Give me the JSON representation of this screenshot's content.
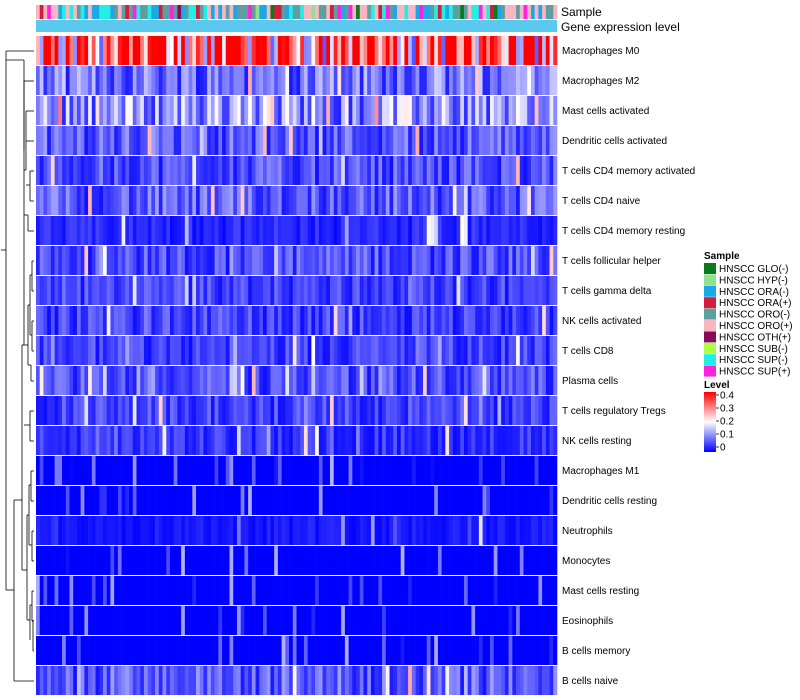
{
  "chart_data": {
    "type": "heatmap",
    "annotation_tracks": [
      "Sample",
      "Gene expression level"
    ],
    "rows": [
      "Macrophages M0",
      "Macrophages M2",
      "Mast cells activated",
      "Dendritic cells activated",
      "T cells CD4 memory activated",
      "T cells CD4 naive",
      "T cells CD4 memory resting",
      "T cells follicular helper",
      "T cells gamma delta",
      "NK cells activated",
      "T cells CD8",
      "Plasma cells",
      "T cells regulatory  Tregs",
      "NK cells resting",
      "Macrophages M1",
      "Dendritic cells resting",
      "Neutrophils",
      "Monocytes",
      "Mast cells resting",
      "Eosinophils",
      "B cells memory",
      "B cells naive"
    ],
    "row_mean_level": [
      0.32,
      0.09,
      0.12,
      0.07,
      0.06,
      0.07,
      0.03,
      0.06,
      0.05,
      0.05,
      0.05,
      0.06,
      0.05,
      0.04,
      0.01,
      0.01,
      0.02,
      0.01,
      0.01,
      0.01,
      0.01,
      0.07
    ],
    "n_samples": 140,
    "sample_legend": {
      "title": "Sample",
      "entries": [
        {
          "label": "HNSCC GLO(-)",
          "color": "#0a7a1a"
        },
        {
          "label": "HNSCC HYP(-)",
          "color": "#8fe08f"
        },
        {
          "label": "HNSCC ORA(-)",
          "color": "#1aa8e8"
        },
        {
          "label": "HNSCC ORA(+)",
          "color": "#d41c3c"
        },
        {
          "label": "HNSCC ORO(-)",
          "color": "#5f9ea0"
        },
        {
          "label": "HNSCC ORO(+)",
          "color": "#f7b6c2"
        },
        {
          "label": "HNSCC OTH(+)",
          "color": "#8a0a5a"
        },
        {
          "label": "HNSCC SUB(-)",
          "color": "#aaff44"
        },
        {
          "label": "HNSCC SUP(-)",
          "color": "#22eee6"
        },
        {
          "label": "HNSCC SUP(+)",
          "color": "#ff22dd"
        }
      ]
    },
    "level_legend": {
      "title": "Level",
      "ticks": [
        "0.4",
        "0.3",
        "0.2",
        "0.1",
        "0"
      ],
      "range": [
        0,
        0.4
      ],
      "colors": [
        "#0000ff",
        "#ffffff",
        "#ff0000"
      ]
    },
    "gene_expression_color": "#5bc8ee",
    "dendrogram": "row"
  }
}
